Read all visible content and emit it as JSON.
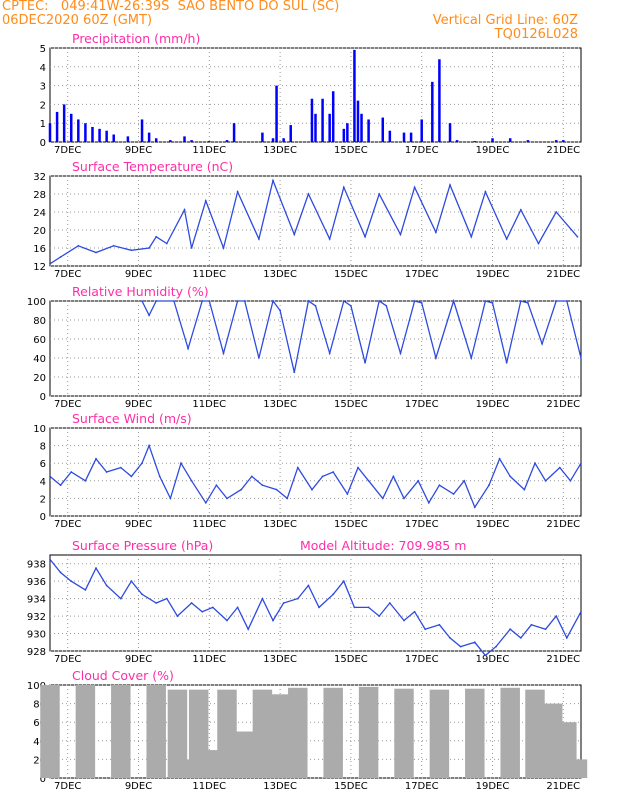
{
  "header": {
    "line1": "CPTEC:   049:41W-26:39S  SAO BENTO DO SUL (SC)",
    "line2_left": "06DEC2020 60Z (GMT)",
    "line2_right": "Vertical Grid Line: 60Z",
    "line3_right": "TQ0126L028"
  },
  "colors": {
    "orange": "#ff8c1a",
    "magenta": "#ff2da8",
    "blue": "#0000ff",
    "line": "#2e4be0",
    "cloud": "#ababab"
  },
  "chart_data": [
    {
      "id": "precip",
      "type": "bar",
      "title": "Precipitation (mm/h)",
      "ylim": [
        0,
        5
      ],
      "yticks": [
        0,
        1,
        2,
        3,
        4,
        5
      ],
      "xticks": [
        "7DEC",
        "9DEC",
        "11DEC",
        "13DEC",
        "15DEC",
        "17DEC",
        "19DEC",
        "21DEC"
      ],
      "grid": true,
      "x_days": [
        0.0,
        0.2,
        0.4,
        0.6,
        0.8,
        1.0,
        1.2,
        1.4,
        1.6,
        1.8,
        2.2,
        2.6,
        2.8,
        3.0,
        3.4,
        3.8,
        4.0,
        4.5,
        5.0,
        5.2,
        6.0,
        6.3,
        6.4,
        6.6,
        6.8,
        7.4,
        7.5,
        7.7,
        7.9,
        8.0,
        8.3,
        8.4,
        8.6,
        8.7,
        8.8,
        9.0,
        9.4,
        9.6,
        10.0,
        10.2,
        10.5,
        10.8,
        11.0,
        11.3,
        11.5,
        12.0,
        12.5,
        13.0,
        13.5,
        14.3,
        14.5
      ],
      "values": [
        1.0,
        1.6,
        2.0,
        1.5,
        1.2,
        1.0,
        0.8,
        0.7,
        0.6,
        0.4,
        0.3,
        1.2,
        0.5,
        0.2,
        0.1,
        0.3,
        0.1,
        0.05,
        0.1,
        1.0,
        0.5,
        0.2,
        3.0,
        0.2,
        0.9,
        2.3,
        1.5,
        2.3,
        1.5,
        2.7,
        0.7,
        1.0,
        4.9,
        2.2,
        1.5,
        1.2,
        1.3,
        0.6,
        0.5,
        0.5,
        1.2,
        3.2,
        4.4,
        1.0,
        0.1,
        0.05,
        0.2,
        0.2,
        0.1,
        0.1,
        0.1
      ]
    },
    {
      "id": "temp",
      "type": "line",
      "title": "Surface Temperature (nC)",
      "ylim": [
        12,
        32
      ],
      "yticks": [
        12,
        16,
        20,
        24,
        28,
        32
      ],
      "xticks": [
        "7DEC",
        "9DEC",
        "11DEC",
        "13DEC",
        "15DEC",
        "17DEC",
        "19DEC",
        "21DEC"
      ],
      "grid": true,
      "x_days": [
        0.0,
        0.3,
        0.8,
        1.3,
        1.8,
        2.3,
        2.8,
        3.0,
        3.3,
        3.8,
        4.0,
        4.4,
        4.9,
        5.3,
        5.9,
        6.3,
        6.9,
        7.3,
        7.9,
        8.3,
        8.9,
        9.3,
        9.9,
        10.3,
        10.9,
        11.3,
        11.9,
        12.3,
        12.9,
        13.3,
        13.8,
        14.3,
        14.9
      ],
      "values": [
        12.5,
        14.0,
        16.5,
        15.0,
        16.5,
        15.5,
        16.0,
        18.5,
        17.0,
        24.5,
        16.0,
        26.5,
        16.0,
        28.5,
        18.0,
        31.0,
        19.0,
        28.0,
        18.0,
        29.5,
        18.5,
        28.0,
        19.0,
        29.5,
        19.5,
        30.0,
        18.5,
        28.5,
        18.0,
        24.5,
        17.0,
        24.0,
        18.5
      ]
    },
    {
      "id": "rh",
      "type": "line",
      "title": "Relative Humidity (%)",
      "ylim": [
        0,
        100
      ],
      "yticks": [
        0,
        20,
        40,
        60,
        80,
        100
      ],
      "xticks": [
        "7DEC",
        "9DEC",
        "11DEC",
        "13DEC",
        "15DEC",
        "17DEC",
        "19DEC",
        "21DEC"
      ],
      "grid": true,
      "x_days": [
        2.6,
        2.8,
        3.0,
        3.5,
        3.9,
        4.3,
        4.5,
        4.9,
        5.3,
        5.5,
        5.9,
        6.3,
        6.5,
        6.9,
        7.3,
        7.5,
        7.9,
        8.3,
        8.5,
        8.9,
        9.3,
        9.5,
        9.9,
        10.3,
        10.5,
        10.9,
        11.4,
        11.9,
        12.3,
        12.5,
        12.9,
        13.3,
        13.5,
        13.9,
        14.3,
        14.6,
        15.0
      ],
      "values": [
        100,
        85,
        100,
        100,
        50,
        100,
        100,
        45,
        100,
        100,
        40,
        100,
        90,
        25,
        100,
        95,
        45,
        100,
        95,
        35,
        100,
        95,
        45,
        100,
        98,
        40,
        100,
        40,
        100,
        98,
        35,
        100,
        98,
        55,
        100,
        100,
        40
      ]
    },
    {
      "id": "wind",
      "type": "line",
      "title": "Surface Wind (m/s)",
      "ylim": [
        0,
        10
      ],
      "yticks": [
        0,
        2,
        4,
        6,
        8,
        10
      ],
      "xticks": [
        "7DEC",
        "9DEC",
        "11DEC",
        "13DEC",
        "15DEC",
        "17DEC",
        "19DEC",
        "21DEC"
      ],
      "grid": true,
      "x_days": [
        0.0,
        0.3,
        0.6,
        1.0,
        1.3,
        1.6,
        2.0,
        2.3,
        2.6,
        2.8,
        3.1,
        3.4,
        3.7,
        4.0,
        4.4,
        4.7,
        5.0,
        5.4,
        5.7,
        6.0,
        6.4,
        6.7,
        7.0,
        7.4,
        7.7,
        8.0,
        8.4,
        8.7,
        9.0,
        9.4,
        9.7,
        10.0,
        10.4,
        10.7,
        11.0,
        11.4,
        11.7,
        12.0,
        12.4,
        12.7,
        13.0,
        13.4,
        13.7,
        14.0,
        14.4,
        14.7,
        15.0
      ],
      "values": [
        4.5,
        3.5,
        5.0,
        4.0,
        6.5,
        5.0,
        5.5,
        4.5,
        6.0,
        8.0,
        4.5,
        2.0,
        6.0,
        4.0,
        1.5,
        3.5,
        2.0,
        3.0,
        4.5,
        3.5,
        3.0,
        2.0,
        5.5,
        3.0,
        4.5,
        5.0,
        2.5,
        5.5,
        4.0,
        2.0,
        4.5,
        2.0,
        4.0,
        1.5,
        3.5,
        2.5,
        4.0,
        1.0,
        3.5,
        6.5,
        4.5,
        3.0,
        6.0,
        4.0,
        5.5,
        4.0,
        6.0
      ]
    },
    {
      "id": "pressure",
      "type": "line",
      "title": "Surface Pressure (hPa)",
      "annotation": "Model Altitude: 709.985 m",
      "ylim": [
        928,
        939
      ],
      "yticks": [
        928,
        930,
        932,
        934,
        936,
        938
      ],
      "xticks": [
        "7DEC",
        "9DEC",
        "11DEC",
        "13DEC",
        "15DEC",
        "17DEC",
        "19DEC",
        "21DEC"
      ],
      "grid": true,
      "x_days": [
        0.0,
        0.3,
        0.6,
        1.0,
        1.3,
        1.6,
        2.0,
        2.3,
        2.6,
        3.0,
        3.3,
        3.6,
        4.0,
        4.3,
        4.6,
        5.0,
        5.3,
        5.6,
        6.0,
        6.3,
        6.6,
        7.0,
        7.3,
        7.6,
        8.0,
        8.3,
        8.6,
        9.0,
        9.3,
        9.6,
        10.0,
        10.3,
        10.6,
        11.0,
        11.3,
        11.6,
        12.0,
        12.3,
        12.6,
        13.0,
        13.3,
        13.6,
        14.0,
        14.3,
        14.6,
        15.0
      ],
      "values": [
        938.5,
        937.0,
        936.0,
        935.0,
        937.5,
        935.5,
        934.0,
        936.0,
        934.5,
        933.5,
        934.0,
        932.0,
        933.5,
        932.5,
        933.0,
        931.5,
        933.0,
        930.5,
        934.0,
        931.5,
        933.5,
        934.0,
        935.5,
        933.0,
        934.5,
        936.0,
        933.0,
        933.0,
        932.0,
        933.5,
        931.5,
        932.5,
        930.5,
        931.0,
        929.5,
        928.5,
        929.0,
        927.5,
        928.5,
        930.5,
        929.5,
        931.0,
        930.5,
        932.0,
        929.5,
        932.5
      ]
    },
    {
      "id": "cloud",
      "type": "bar",
      "title": "Cloud Cover (%)",
      "ylim": [
        0,
        100
      ],
      "yticks": [
        0,
        20,
        40,
        60,
        80,
        100
      ],
      "xticks": [
        "7DEC",
        "9DEC",
        "11DEC",
        "13DEC",
        "15DEC",
        "17DEC",
        "19DEC",
        "21DEC"
      ],
      "grid": true,
      "x_days": [
        0.0,
        1.0,
        2.0,
        3.0,
        3.6,
        3.9,
        4.2,
        4.5,
        5.0,
        5.5,
        6.0,
        6.5,
        7.0,
        8.0,
        9.0,
        10.0,
        11.0,
        12.0,
        13.0,
        13.7,
        14.2,
        14.6,
        14.9
      ],
      "values": [
        100,
        100,
        100,
        100,
        95,
        20,
        95,
        30,
        95,
        50,
        95,
        90,
        97,
        97,
        98,
        96,
        95,
        96,
        97,
        95,
        80,
        60,
        20
      ]
    }
  ]
}
